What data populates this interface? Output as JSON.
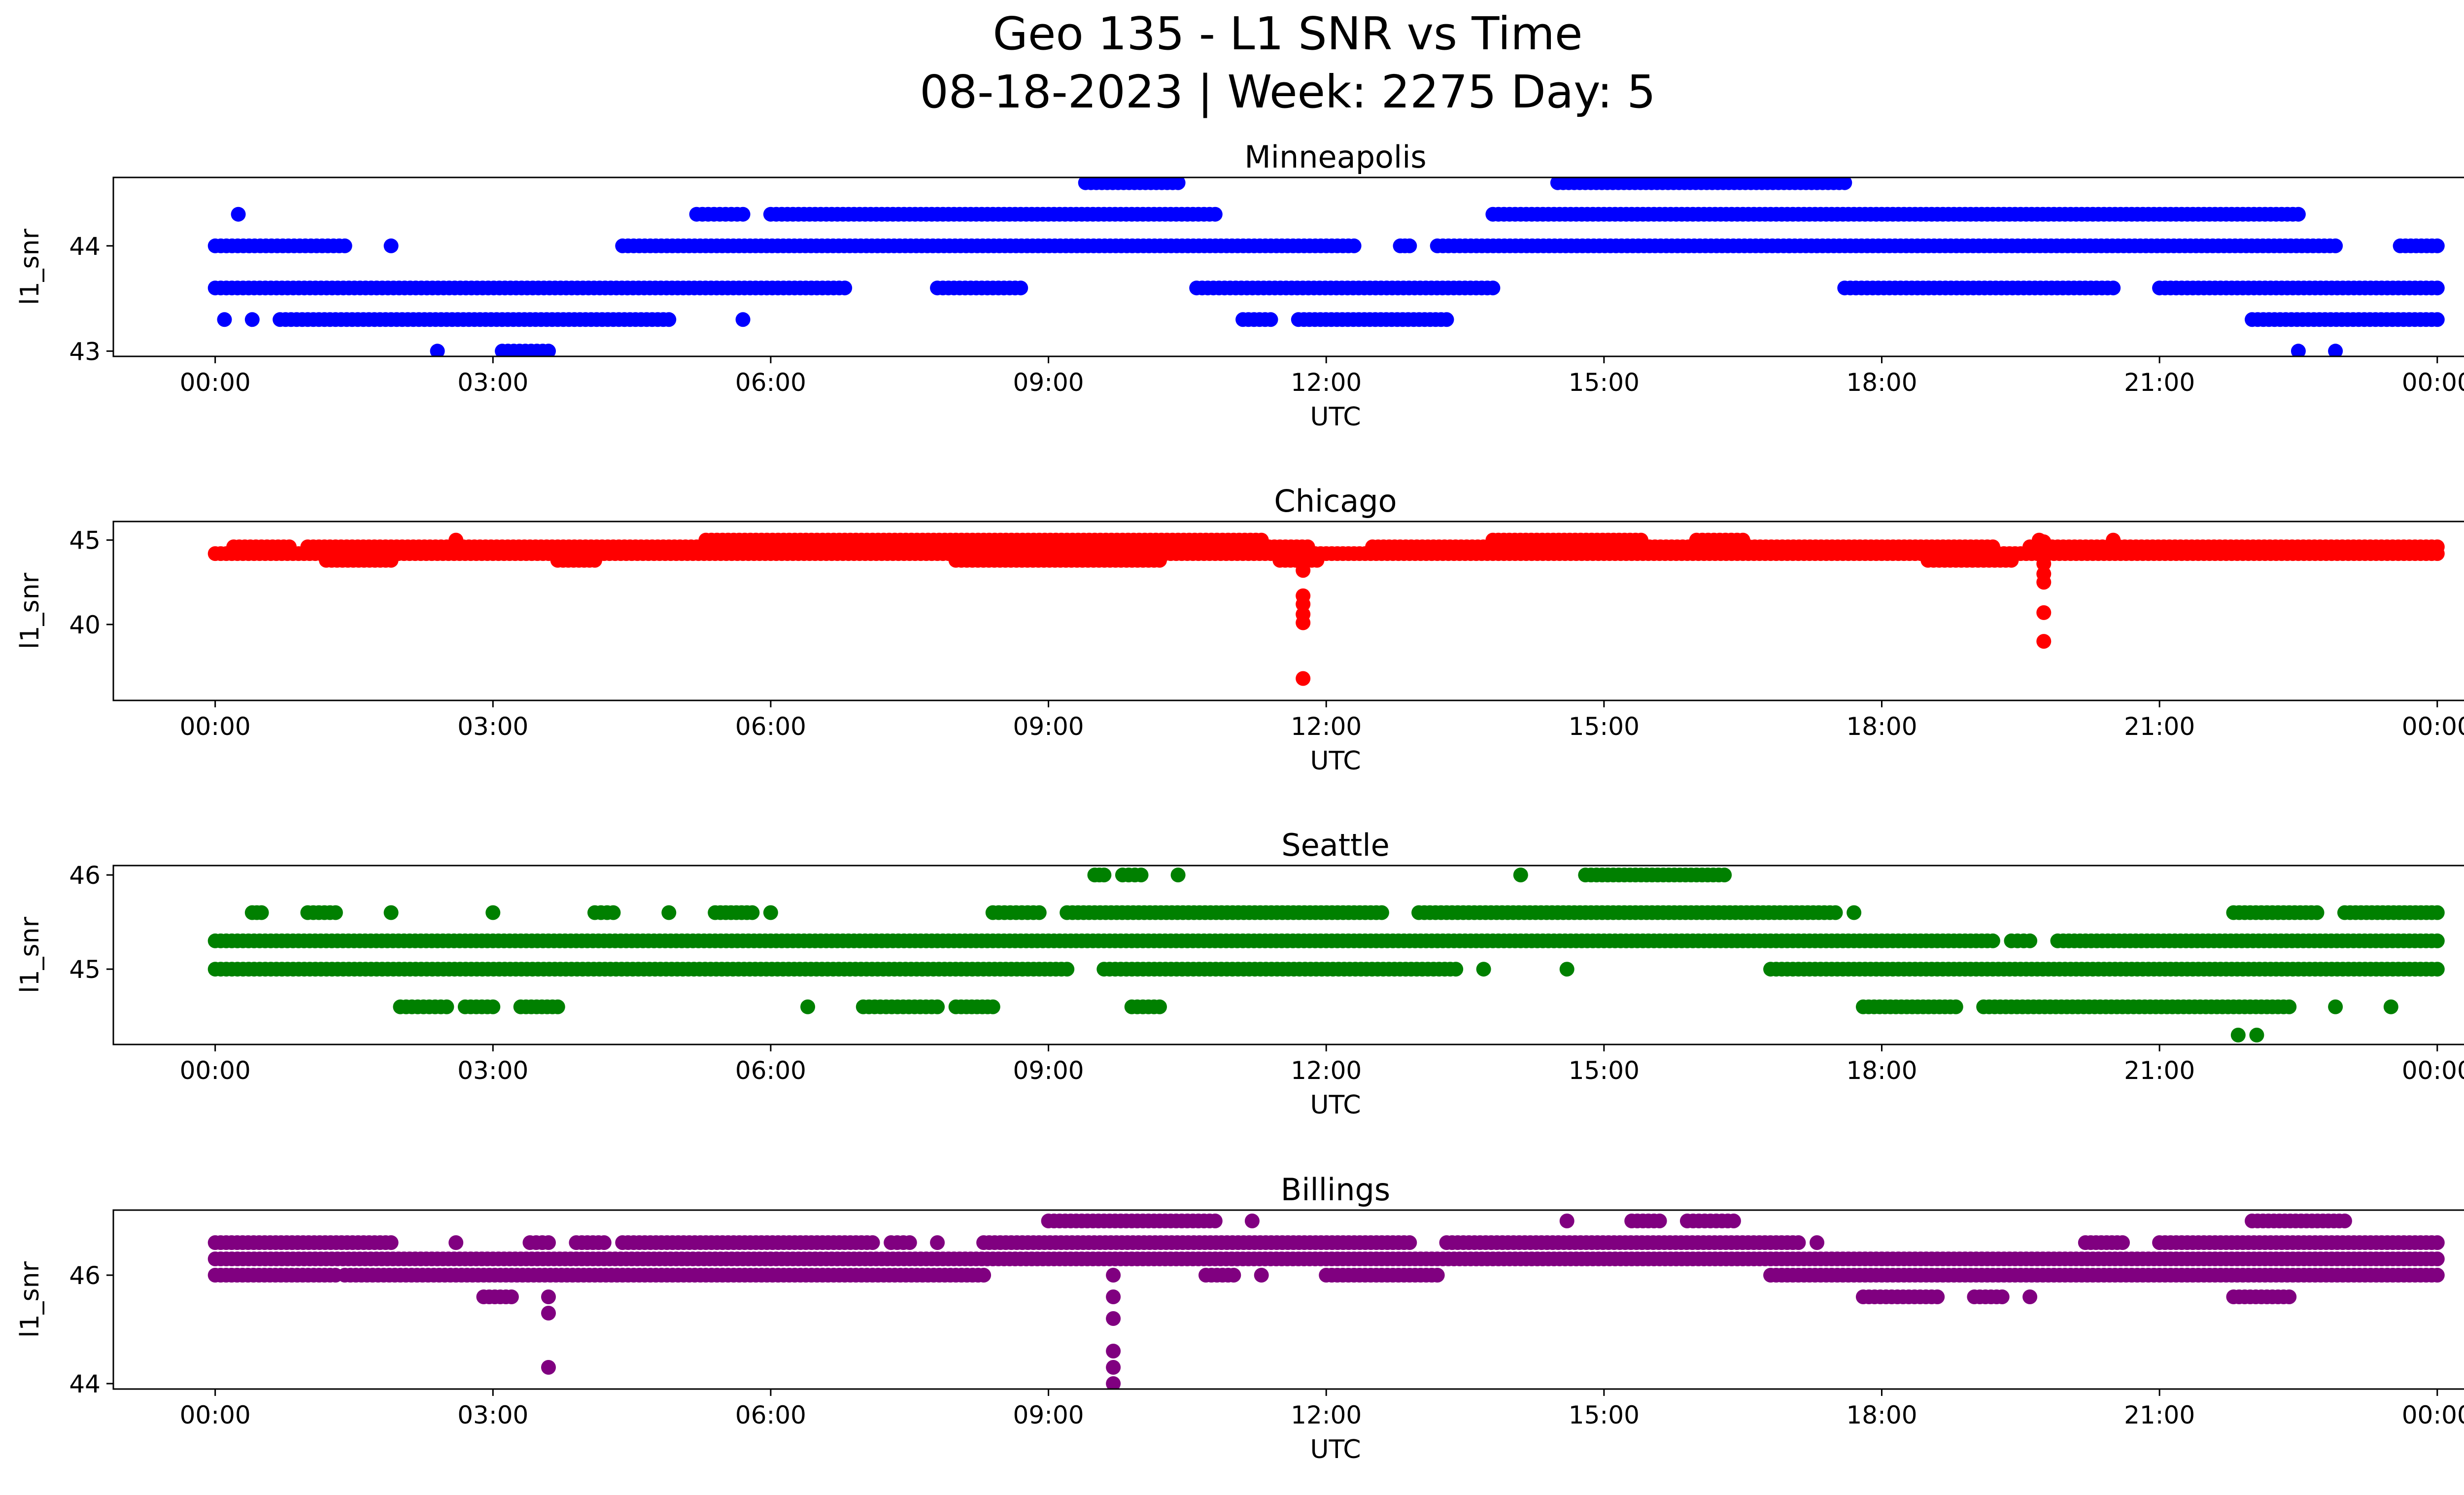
{
  "figure": {
    "title_line1": "Geo 135 - L1 SNR vs Time",
    "title_line2": "08-18-2023 | Week: 2275 Day: 5"
  },
  "chart_data": [
    {
      "type": "scatter",
      "title": "Minneapolis",
      "xlabel": "UTC",
      "ylabel": "l1_snr",
      "color": "#0000ff",
      "xlim_hours": [
        -1.1,
        25.3
      ],
      "ylim": [
        42.95,
        44.65
      ],
      "xticks": [
        0,
        3,
        6,
        9,
        12,
        15,
        18,
        21,
        24
      ],
      "xtick_labels": [
        "00:00",
        "03:00",
        "06:00",
        "09:00",
        "12:00",
        "15:00",
        "18:00",
        "21:00",
        "00:00"
      ],
      "yticks": [
        43,
        44
      ],
      "ytick_labels": [
        "43",
        "44"
      ],
      "levels": [
        {
          "y": 44.6,
          "ranges": [
            [
              9.4,
              10.4
            ],
            [
              14.5,
              17.6
            ]
          ]
        },
        {
          "y": 44.3,
          "ranges": [
            [
              0.25,
              0.25
            ],
            [
              5.2,
              5.7
            ],
            [
              6.0,
              10.8
            ],
            [
              13.8,
              22.5
            ]
          ]
        },
        {
          "y": 44.0,
          "ranges": [
            [
              0.0,
              1.4
            ],
            [
              1.9,
              1.9
            ],
            [
              4.4,
              12.3
            ],
            [
              12.8,
              12.9
            ],
            [
              13.2,
              17.0
            ],
            [
              17.0,
              22.9
            ],
            [
              23.6,
              24.0
            ]
          ]
        },
        {
          "y": 43.6,
          "ranges": [
            [
              0.0,
              6.8
            ],
            [
              7.8,
              8.7
            ],
            [
              10.6,
              13.8
            ],
            [
              17.6,
              20.5
            ],
            [
              21.0,
              24.0
            ]
          ]
        },
        {
          "y": 43.3,
          "ranges": [
            [
              0.1,
              0.1
            ],
            [
              0.4,
              0.4
            ],
            [
              0.7,
              4.9
            ],
            [
              5.7,
              5.7
            ],
            [
              11.1,
              11.4
            ],
            [
              11.7,
              13.3
            ],
            [
              22.0,
              24.0
            ]
          ]
        },
        {
          "y": 43.0,
          "ranges": [
            [
              2.4,
              2.4
            ],
            [
              3.1,
              3.6
            ],
            [
              22.5,
              22.5
            ],
            [
              22.9,
              22.9
            ]
          ]
        }
      ]
    },
    {
      "type": "scatter",
      "title": "Chicago",
      "xlabel": "UTC",
      "ylabel": "l1_snr",
      "color": "#ff0000",
      "xlim_hours": [
        -1.1,
        25.3
      ],
      "ylim": [
        35.5,
        46.1
      ],
      "xticks": [
        0,
        3,
        6,
        9,
        12,
        15,
        18,
        21,
        24
      ],
      "xtick_labels": [
        "00:00",
        "03:00",
        "06:00",
        "09:00",
        "12:00",
        "15:00",
        "18:00",
        "21:00",
        "00:00"
      ],
      "yticks": [
        40,
        45
      ],
      "ytick_labels": [
        "40",
        "45"
      ],
      "levels": [
        {
          "y": 45.0,
          "ranges": [
            [
              2.6,
              2.6
            ],
            [
              5.3,
              11.3
            ],
            [
              13.8,
              15.4
            ],
            [
              16.0,
              16.5
            ],
            [
              19.7,
              19.7
            ],
            [
              20.5,
              20.5
            ]
          ]
        },
        {
          "y": 44.6,
          "ranges": [
            [
              0.2,
              0.8
            ],
            [
              1.0,
              11.8
            ],
            [
              12.5,
              19.2
            ],
            [
              19.6,
              24.0
            ]
          ]
        },
        {
          "y": 44.2,
          "ranges": [
            [
              0.0,
              24.0
            ]
          ]
        },
        {
          "y": 43.8,
          "ranges": [
            [
              1.2,
              1.9
            ],
            [
              3.7,
              4.1
            ],
            [
              8.0,
              10.2
            ],
            [
              11.5,
              11.9
            ],
            [
              18.5,
              19.4
            ]
          ]
        }
      ],
      "points": [
        [
          11.75,
          43.2
        ],
        [
          11.75,
          41.7
        ],
        [
          11.75,
          41.2
        ],
        [
          11.75,
          40.6
        ],
        [
          11.75,
          40.1
        ],
        [
          11.75,
          36.8
        ],
        [
          19.75,
          44.9
        ],
        [
          19.75,
          44.3
        ],
        [
          19.75,
          43.6
        ],
        [
          19.75,
          43.0
        ],
        [
          19.75,
          42.5
        ],
        [
          19.75,
          40.7
        ],
        [
          19.75,
          39.0
        ]
      ]
    },
    {
      "type": "scatter",
      "title": "Seattle",
      "xlabel": "UTC",
      "ylabel": "l1_snr",
      "color": "#008000",
      "xlim_hours": [
        -1.1,
        25.3
      ],
      "ylim": [
        44.2,
        46.1
      ],
      "xticks": [
        0,
        3,
        6,
        9,
        12,
        15,
        18,
        21,
        24
      ],
      "xtick_labels": [
        "00:00",
        "03:00",
        "06:00",
        "09:00",
        "12:00",
        "15:00",
        "18:00",
        "21:00",
        "00:00"
      ],
      "yticks": [
        45,
        46
      ],
      "ytick_labels": [
        "45",
        "46"
      ],
      "levels": [
        {
          "y": 46.0,
          "ranges": [
            [
              9.5,
              9.6
            ],
            [
              9.8,
              10.0
            ],
            [
              10.4,
              10.4
            ],
            [
              14.1,
              14.1
            ],
            [
              14.8,
              16.3
            ]
          ]
        },
        {
          "y": 45.6,
          "ranges": [
            [
              0.4,
              0.5
            ],
            [
              1.0,
              1.3
            ],
            [
              1.9,
              1.9
            ],
            [
              3.0,
              3.0
            ],
            [
              4.1,
              4.3
            ],
            [
              4.9,
              4.9
            ],
            [
              5.4,
              5.8
            ],
            [
              6.0,
              6.0
            ],
            [
              8.4,
              8.9
            ],
            [
              9.2,
              12.6
            ],
            [
              13.0,
              17.5
            ],
            [
              17.7,
              17.7
            ],
            [
              21.8,
              22.7
            ],
            [
              23.0,
              24.0
            ]
          ]
        },
        {
          "y": 45.3,
          "ranges": [
            [
              0.0,
              19.2
            ],
            [
              19.4,
              19.6
            ],
            [
              19.9,
              24.0
            ]
          ]
        },
        {
          "y": 45.0,
          "ranges": [
            [
              0.0,
              9.2
            ],
            [
              9.6,
              13.4
            ],
            [
              13.7,
              13.7
            ],
            [
              14.6,
              14.6
            ],
            [
              16.8,
              24.0
            ]
          ]
        },
        {
          "y": 44.6,
          "ranges": [
            [
              2.0,
              2.5
            ],
            [
              2.7,
              3.0
            ],
            [
              3.3,
              3.7
            ],
            [
              6.4,
              6.4
            ],
            [
              7.0,
              7.8
            ],
            [
              8.0,
              8.4
            ],
            [
              9.9,
              10.2
            ],
            [
              17.8,
              18.8
            ],
            [
              19.1,
              22.4
            ],
            [
              22.9,
              22.9
            ],
            [
              23.5,
              23.5
            ]
          ]
        },
        {
          "y": 44.3,
          "ranges": [
            [
              21.85,
              21.85
            ],
            [
              22.05,
              22.05
            ]
          ]
        }
      ]
    },
    {
      "type": "scatter",
      "title": "Billings",
      "xlabel": "UTC",
      "ylabel": "l1_snr",
      "color": "#800080",
      "xlim_hours": [
        -1.1,
        25.3
      ],
      "ylim": [
        43.9,
        47.2
      ],
      "xticks": [
        0,
        3,
        6,
        9,
        12,
        15,
        18,
        21,
        24
      ],
      "xtick_labels": [
        "00:00",
        "03:00",
        "06:00",
        "09:00",
        "12:00",
        "15:00",
        "18:00",
        "21:00",
        "00:00"
      ],
      "yticks": [
        44,
        46
      ],
      "ytick_labels": [
        "44",
        "46"
      ],
      "levels": [
        {
          "y": 47.0,
          "ranges": [
            [
              9.0,
              10.8
            ],
            [
              11.2,
              11.2
            ],
            [
              14.6,
              14.6
            ],
            [
              15.3,
              15.6
            ],
            [
              15.9,
              16.4
            ],
            [
              22.0,
              23.0
            ]
          ]
        },
        {
          "y": 46.6,
          "ranges": [
            [
              0.0,
              1.9
            ],
            [
              2.6,
              2.6
            ],
            [
              3.4,
              3.6
            ],
            [
              3.9,
              4.2
            ],
            [
              4.4,
              7.1
            ],
            [
              7.3,
              7.5
            ],
            [
              7.8,
              7.8
            ],
            [
              8.3,
              12.9
            ],
            [
              13.3,
              17.1
            ],
            [
              17.3,
              17.3
            ],
            [
              20.2,
              20.6
            ],
            [
              21.0,
              24.0
            ]
          ]
        },
        {
          "y": 46.3,
          "ranges": [
            [
              0.0,
              24.0
            ]
          ]
        },
        {
          "y": 46.0,
          "ranges": [
            [
              0.0,
              1.3
            ],
            [
              1.4,
              8.3
            ],
            [
              10.7,
              11.0
            ],
            [
              11.3,
              11.3
            ],
            [
              12.0,
              13.2
            ],
            [
              16.8,
              24.0
            ]
          ]
        },
        {
          "y": 45.6,
          "ranges": [
            [
              2.9,
              3.2
            ],
            [
              3.6,
              3.6
            ],
            [
              17.8,
              18.6
            ],
            [
              19.0,
              19.3
            ],
            [
              19.6,
              19.6
            ],
            [
              21.8,
              22.4
            ]
          ]
        }
      ],
      "points": [
        [
          3.6,
          45.3
        ],
        [
          3.6,
          44.3
        ],
        [
          9.7,
          46.0
        ],
        [
          9.7,
          45.6
        ],
        [
          9.7,
          45.2
        ],
        [
          9.7,
          44.6
        ],
        [
          9.7,
          44.3
        ],
        [
          9.7,
          44.0
        ]
      ]
    }
  ]
}
